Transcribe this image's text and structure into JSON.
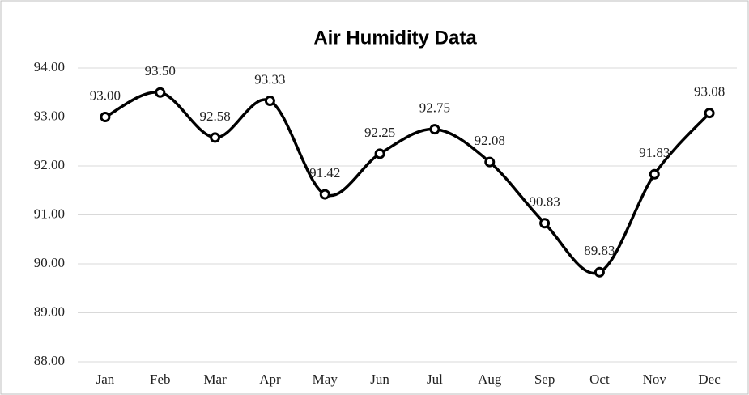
{
  "chart_data": {
    "type": "line",
    "title": "Air Humidity Data",
    "categories": [
      "Jan",
      "Feb",
      "Mar",
      "Apr",
      "May",
      "Jun",
      "Jul",
      "Aug",
      "Sep",
      "Oct",
      "Nov",
      "Dec"
    ],
    "values": [
      93,
      93.5,
      92.58,
      93.33,
      91.42,
      92.25,
      92.75,
      92.08,
      90.83,
      89.83,
      91.83,
      93.08
    ],
    "value_labels": [
      "93.00",
      "93.50",
      "92.58",
      "93.33",
      "91.42",
      "92.25",
      "92.75",
      "92.08",
      "90.83",
      "89.83",
      "91.83",
      "93.08"
    ],
    "color": "#000000",
    "ylim": [
      88,
      94
    ],
    "yticks": [
      {
        "value": 88,
        "label": "88.00"
      },
      {
        "value": 89,
        "label": "89.00"
      },
      {
        "value": 90,
        "label": "90.00"
      },
      {
        "value": 91,
        "label": "91.00"
      },
      {
        "value": 92,
        "label": "92.00"
      },
      {
        "value": 93,
        "label": "93.00"
      },
      {
        "value": 94,
        "label": "94.00"
      }
    ],
    "grid": true,
    "smooth": true
  }
}
